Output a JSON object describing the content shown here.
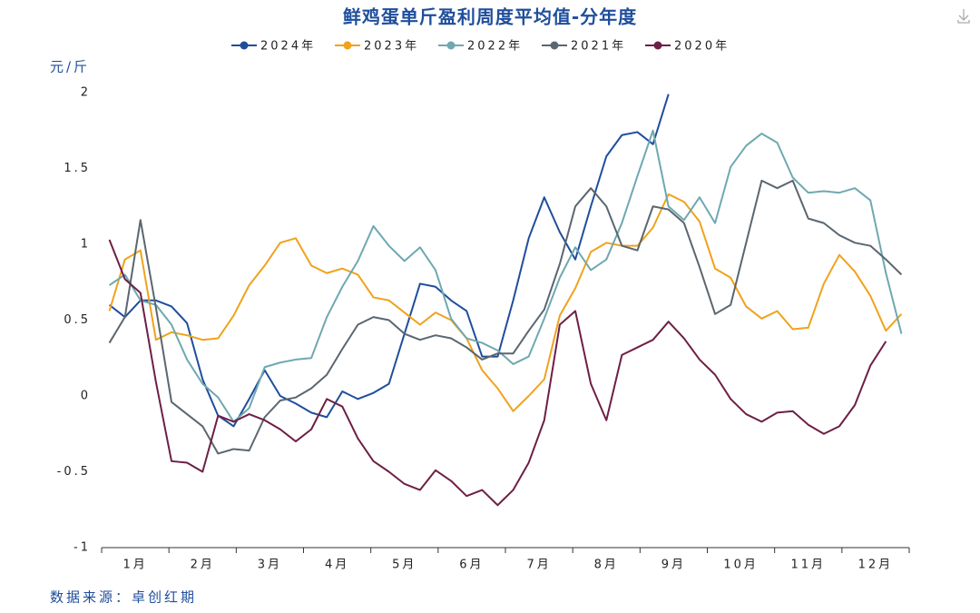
{
  "chart_data": {
    "type": "line",
    "title": "鲜鸡蛋单斤盈利周度平均值-分年度",
    "y_label": "元/斤",
    "source": "数据来源：卓创红期",
    "x": [
      1,
      2,
      3,
      4,
      5,
      6,
      7,
      8,
      9,
      10,
      11,
      12,
      13,
      14,
      15,
      16,
      17,
      18,
      19,
      20,
      21,
      22,
      23,
      24,
      25,
      26,
      27,
      28,
      29,
      30,
      31,
      32,
      33,
      34,
      35,
      36,
      37,
      38,
      39,
      40,
      41,
      42,
      43,
      44,
      45,
      46,
      47,
      48,
      49,
      50,
      51,
      52
    ],
    "xlim": [
      0.5,
      52.5
    ],
    "xticks": [
      {
        "value": 2.67,
        "label": "1月"
      },
      {
        "value": 7,
        "label": "2月"
      },
      {
        "value": 11.33,
        "label": "3月"
      },
      {
        "value": 15.67,
        "label": "4月"
      },
      {
        "value": 20,
        "label": "5月"
      },
      {
        "value": 24.33,
        "label": "6月"
      },
      {
        "value": 28.67,
        "label": "7月"
      },
      {
        "value": 33,
        "label": "8月"
      },
      {
        "value": 37.33,
        "label": "9月"
      },
      {
        "value": 41.67,
        "label": "10月"
      },
      {
        "value": 46,
        "label": "11月"
      },
      {
        "value": 50.33,
        "label": "12月"
      }
    ],
    "ylim": [
      -1,
      2
    ],
    "yticks": [
      -1,
      -0.5,
      0,
      0.5,
      1,
      1.5,
      2
    ],
    "legend": "top",
    "series": [
      {
        "name": "2024年",
        "color": "#1f4e9c",
        "values": [
          0.6,
          0.52,
          0.63,
          0.63,
          0.59,
          0.48,
          0.11,
          -0.13,
          -0.2,
          -0.02,
          0.17,
          0,
          -0.05,
          -0.11,
          -0.14,
          0.03,
          -0.02,
          0.02,
          0.08,
          0.41,
          0.74,
          0.72,
          0.63,
          0.56,
          0.26,
          0.26,
          0.63,
          1.04,
          1.31,
          1.08,
          0.9,
          1.25,
          1.58,
          1.72,
          1.74,
          1.66,
          1.99,
          null,
          null,
          null,
          null,
          null,
          null,
          null,
          null,
          null,
          null,
          null,
          null,
          null,
          null,
          null
        ]
      },
      {
        "name": "2023年",
        "color": "#f0a21c",
        "values": [
          0.56,
          0.9,
          0.96,
          0.37,
          0.42,
          0.4,
          0.37,
          0.38,
          0.53,
          0.73,
          0.86,
          1.01,
          1.04,
          0.86,
          0.81,
          0.84,
          0.8,
          0.65,
          0.63,
          0.55,
          0.47,
          0.55,
          0.5,
          0.38,
          0.17,
          0.05,
          -0.1,
          0,
          0.11,
          0.53,
          0.71,
          0.95,
          1.01,
          0.99,
          0.99,
          1.11,
          1.33,
          1.28,
          1.15,
          0.84,
          0.78,
          0.59,
          0.51,
          0.56,
          0.44,
          0.45,
          0.74,
          0.93,
          0.82,
          0.66,
          0.43,
          0.54
        ]
      },
      {
        "name": "2022年",
        "color": "#6fa8b0",
        "values": [
          0.73,
          0.8,
          0.63,
          0.6,
          0.47,
          0.24,
          0.08,
          -0.01,
          -0.17,
          -0.08,
          0.19,
          0.22,
          0.24,
          0.25,
          0.52,
          0.72,
          0.89,
          1.12,
          0.99,
          0.89,
          0.98,
          0.83,
          0.51,
          0.38,
          0.35,
          0.3,
          0.21,
          0.26,
          0.51,
          0.78,
          0.98,
          0.83,
          0.9,
          1.14,
          1.45,
          1.75,
          1.25,
          1.16,
          1.31,
          1.14,
          1.51,
          1.65,
          1.73,
          1.67,
          1.44,
          1.34,
          1.35,
          1.34,
          1.37,
          1.29,
          0.81,
          0.41
        ]
      },
      {
        "name": "2021年",
        "color": "#5a6670",
        "values": [
          0.35,
          0.52,
          1.16,
          0.58,
          -0.04,
          -0.12,
          -0.2,
          -0.38,
          -0.35,
          -0.36,
          -0.14,
          -0.03,
          -0.01,
          0.05,
          0.14,
          0.31,
          0.47,
          0.52,
          0.5,
          0.41,
          0.37,
          0.4,
          0.38,
          0.32,
          0.24,
          0.28,
          0.28,
          0.43,
          0.57,
          0.87,
          1.25,
          1.37,
          1.25,
          0.99,
          0.96,
          1.25,
          1.23,
          1.14,
          0.85,
          0.54,
          0.6,
          1.01,
          1.42,
          1.37,
          1.42,
          1.17,
          1.14,
          1.06,
          1.01,
          0.99,
          0.9,
          0.8
        ]
      },
      {
        "name": "2020年",
        "color": "#6e1f45",
        "values": [
          1.03,
          0.77,
          0.68,
          0.09,
          -0.43,
          -0.44,
          -0.5,
          -0.13,
          -0.17,
          -0.12,
          -0.16,
          -0.22,
          -0.3,
          -0.22,
          -0.02,
          -0.07,
          -0.28,
          -0.43,
          -0.5,
          -0.58,
          -0.62,
          -0.49,
          -0.56,
          -0.66,
          -0.62,
          -0.72,
          -0.62,
          -0.44,
          -0.16,
          0.47,
          0.56,
          0.08,
          -0.16,
          0.27,
          0.32,
          0.37,
          0.49,
          0.38,
          0.24,
          0.14,
          -0.02,
          -0.12,
          -0.17,
          -0.11,
          -0.1,
          -0.19,
          -0.25,
          -0.2,
          -0.06,
          0.2,
          0.36,
          null
        ]
      }
    ]
  }
}
